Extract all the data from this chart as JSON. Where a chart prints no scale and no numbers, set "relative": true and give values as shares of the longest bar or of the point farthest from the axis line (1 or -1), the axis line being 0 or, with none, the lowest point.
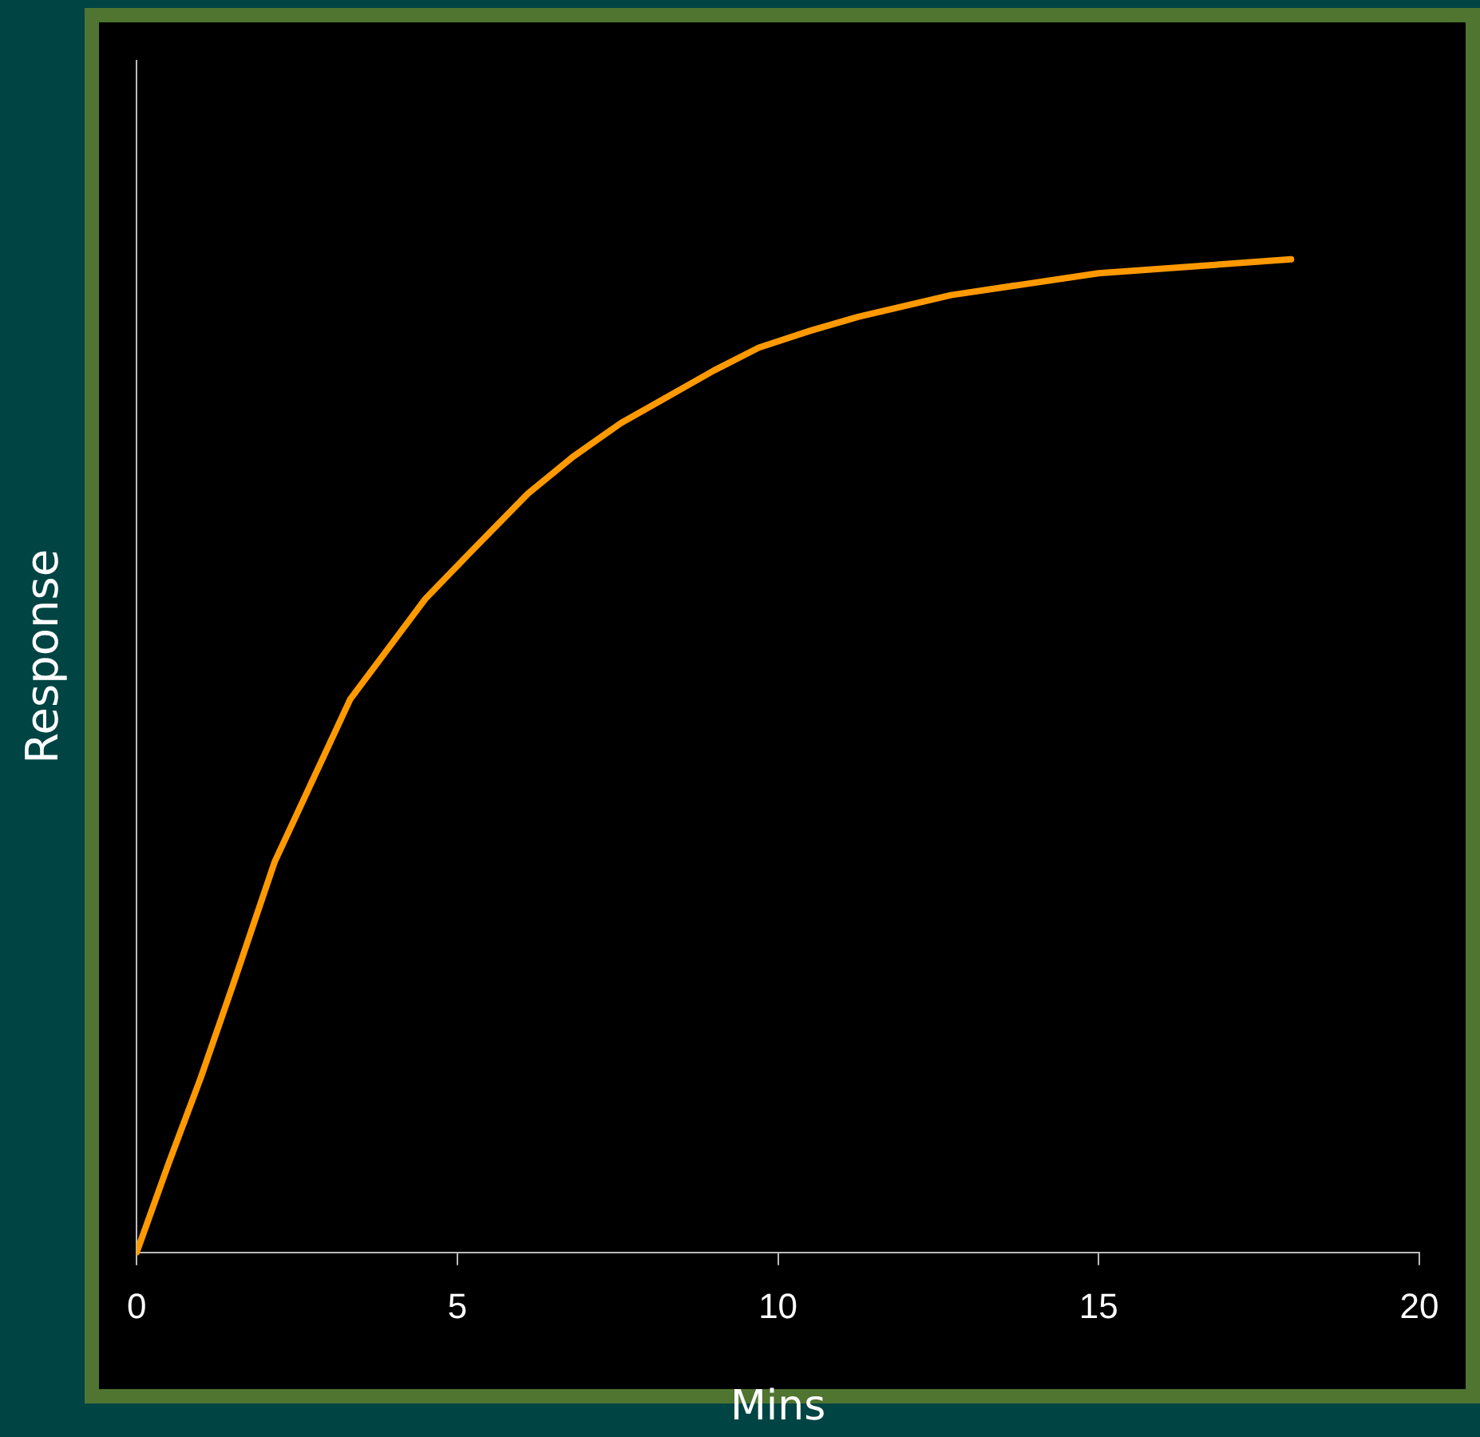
{
  "chart_data": {
    "type": "line",
    "xlabel": "Mins",
    "ylabel": "Response",
    "relative": true,
    "xlim": [
      0,
      20
    ],
    "xticks": [
      0,
      5,
      10,
      15,
      20
    ],
    "grid": false,
    "legend": false,
    "marker": "none",
    "line_style": "solid",
    "series": [
      {
        "color": "#ff9900",
        "x": [
          0,
          0.5,
          1.0,
          1.5,
          2.15,
          3.33,
          4.5,
          5.25,
          6.1,
          6.8,
          7.55,
          9.0,
          9.7,
          10.5,
          11.25,
          12.7,
          15.0,
          18.0
        ],
        "values": [
          0,
          0.09,
          0.176,
          0.269,
          0.393,
          0.557,
          0.658,
          0.708,
          0.764,
          0.801,
          0.835,
          0.888,
          0.911,
          0.928,
          0.942,
          0.964,
          0.986,
          1
        ]
      }
    ]
  }
}
